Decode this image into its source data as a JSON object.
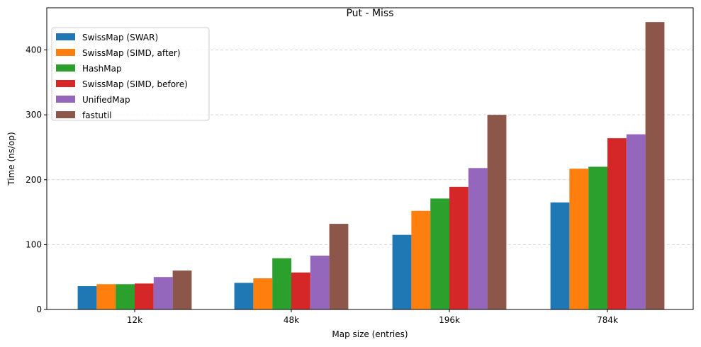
{
  "chart_data": {
    "type": "bar",
    "title": "Put - Miss",
    "xlabel": "Map size (entries)",
    "ylabel": "Time (ns/op)",
    "categories": [
      "12k",
      "48k",
      "196k",
      "784k"
    ],
    "ylim": [
      0,
      465
    ],
    "yticks": [
      0,
      100,
      200,
      300,
      400
    ],
    "grid": "y-dashed",
    "legend_position": "top-left",
    "series": [
      {
        "name": "SwissMap (SWAR)",
        "color": "#1f77b4",
        "values": [
          36,
          41,
          115,
          165
        ]
      },
      {
        "name": "SwissMap (SIMD, after)",
        "color": "#ff7f0e",
        "values": [
          39,
          48,
          152,
          217
        ]
      },
      {
        "name": "HashMap",
        "color": "#2ca02c",
        "values": [
          39,
          79,
          171,
          220
        ]
      },
      {
        "name": "SwissMap (SIMD, before)",
        "color": "#d62728",
        "values": [
          40,
          57,
          189,
          264
        ]
      },
      {
        "name": "UnifiedMap",
        "color": "#9467bd",
        "values": [
          50,
          83,
          218,
          270
        ]
      },
      {
        "name": "fastutil",
        "color": "#8c564b",
        "values": [
          60,
          132,
          300,
          443
        ]
      }
    ]
  }
}
